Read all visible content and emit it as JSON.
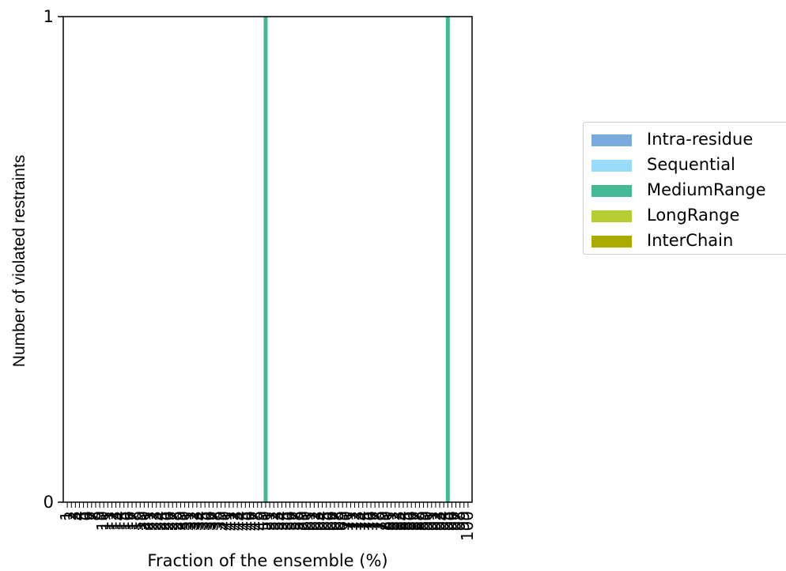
{
  "chart_data": {
    "type": "bar",
    "xlabel": "Fraction of the ensemble (%)",
    "ylabel": "Number of violated restraints",
    "ylim": [
      0,
      1
    ],
    "yticks": [
      "0",
      "1"
    ],
    "x": [
      1,
      2,
      3,
      4,
      5,
      6,
      7,
      8,
      9,
      10,
      11,
      12,
      13,
      14,
      15,
      16,
      17,
      18,
      19,
      20,
      21,
      22,
      23,
      24,
      25,
      26,
      27,
      28,
      29,
      30,
      31,
      32,
      33,
      34,
      35,
      36,
      37,
      38,
      39,
      40,
      41,
      42,
      43,
      44,
      45,
      46,
      47,
      48,
      49,
      50,
      51,
      52,
      53,
      54,
      55,
      56,
      57,
      58,
      59,
      60,
      61,
      62,
      63,
      64,
      65,
      66,
      67,
      68,
      69,
      70,
      71,
      72,
      73,
      74,
      75,
      76,
      77,
      78,
      79,
      80,
      81,
      82,
      83,
      84,
      85,
      86,
      87,
      88,
      89,
      90,
      91,
      92,
      93,
      94,
      95,
      96,
      97,
      98,
      99,
      100
    ],
    "xlim": [
      0,
      101
    ],
    "series": [
      {
        "name": "Intra-residue",
        "color": "#7aa9dc",
        "values": {}
      },
      {
        "name": "Sequential",
        "color": "#9adcf8",
        "values": {}
      },
      {
        "name": "MediumRange",
        "color": "#45b994",
        "values": {
          "50": 1,
          "95": 1
        }
      },
      {
        "name": "LongRange",
        "color": "#b6cc33",
        "values": {}
      },
      {
        "name": "InterChain",
        "color": "#aaaa00",
        "values": {}
      }
    ],
    "legend_position": "right",
    "grid": false
  }
}
